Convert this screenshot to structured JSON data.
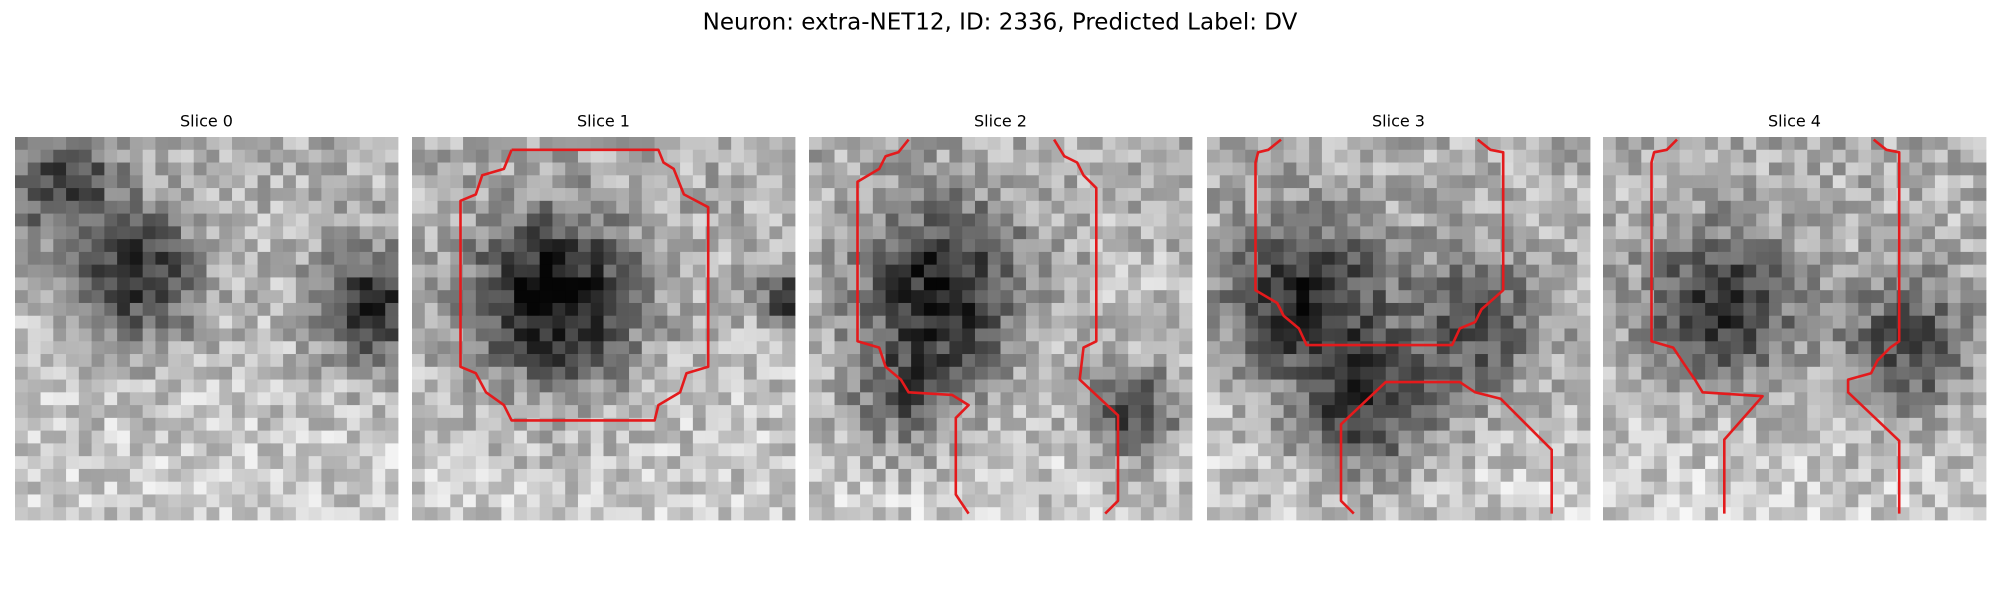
{
  "figure": {
    "title": "Neuron: extra-NET12, ID: 2336, Predicted Label: DV",
    "panels": [
      {
        "title": "Slice 0"
      },
      {
        "title": "Slice 1"
      },
      {
        "title": "Slice 2"
      },
      {
        "title": "Slice 3"
      },
      {
        "title": "Slice 4"
      }
    ]
  }
}
